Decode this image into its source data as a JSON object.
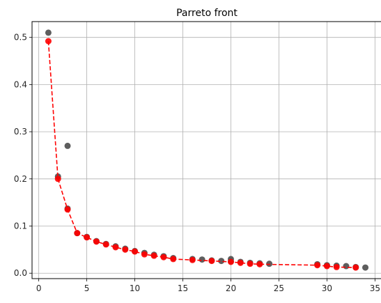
{
  "chart_data": {
    "type": "scatter",
    "title": "Parreto front",
    "xlabel": "",
    "ylabel": "",
    "xlim": [
      -0.7,
      35.7
    ],
    "ylim": [
      -0.0115,
      0.5335
    ],
    "x_ticks": [
      0,
      5,
      10,
      15,
      20,
      25,
      30,
      35
    ],
    "y_ticks": [
      0.0,
      0.1,
      0.2,
      0.3,
      0.4,
      0.5
    ],
    "x_tick_labels": [
      "0",
      "5",
      "10",
      "15",
      "20",
      "25",
      "30",
      "35"
    ],
    "y_tick_labels": [
      "0.0",
      "0.1",
      "0.2",
      "0.3",
      "0.4",
      "0.5"
    ],
    "grid": true,
    "legend": "none",
    "series": [
      {
        "kind": "scatter",
        "color": "#555555",
        "x": [
          1,
          2,
          3,
          3,
          4,
          5,
          6,
          7,
          8,
          9,
          10,
          11,
          12,
          13,
          14,
          16,
          17,
          18,
          19,
          20,
          20,
          21,
          22,
          23,
          24,
          29,
          30,
          31,
          32,
          33,
          34
        ],
        "y": [
          0.51,
          0.205,
          0.27,
          0.137,
          0.085,
          0.077,
          0.068,
          0.062,
          0.057,
          0.052,
          0.047,
          0.043,
          0.039,
          0.036,
          0.032,
          0.03,
          0.029,
          0.027,
          0.026,
          0.025,
          0.03,
          0.024,
          0.022,
          0.021,
          0.02,
          0.019,
          0.017,
          0.016,
          0.015,
          0.013,
          0.012
        ]
      },
      {
        "kind": "line-scatter",
        "color": "#ff0000",
        "line_style": "dashed",
        "x": [
          1,
          2,
          3,
          4,
          5,
          6,
          7,
          8,
          9,
          10,
          11,
          12,
          13,
          14,
          16,
          18,
          20,
          21,
          22,
          23,
          29,
          30,
          31,
          33
        ],
        "y": [
          0.492,
          0.2,
          0.135,
          0.085,
          0.076,
          0.067,
          0.061,
          0.055,
          0.05,
          0.046,
          0.04,
          0.037,
          0.034,
          0.03,
          0.028,
          0.026,
          0.024,
          0.022,
          0.02,
          0.019,
          0.017,
          0.015,
          0.013,
          0.012
        ]
      }
    ]
  }
}
